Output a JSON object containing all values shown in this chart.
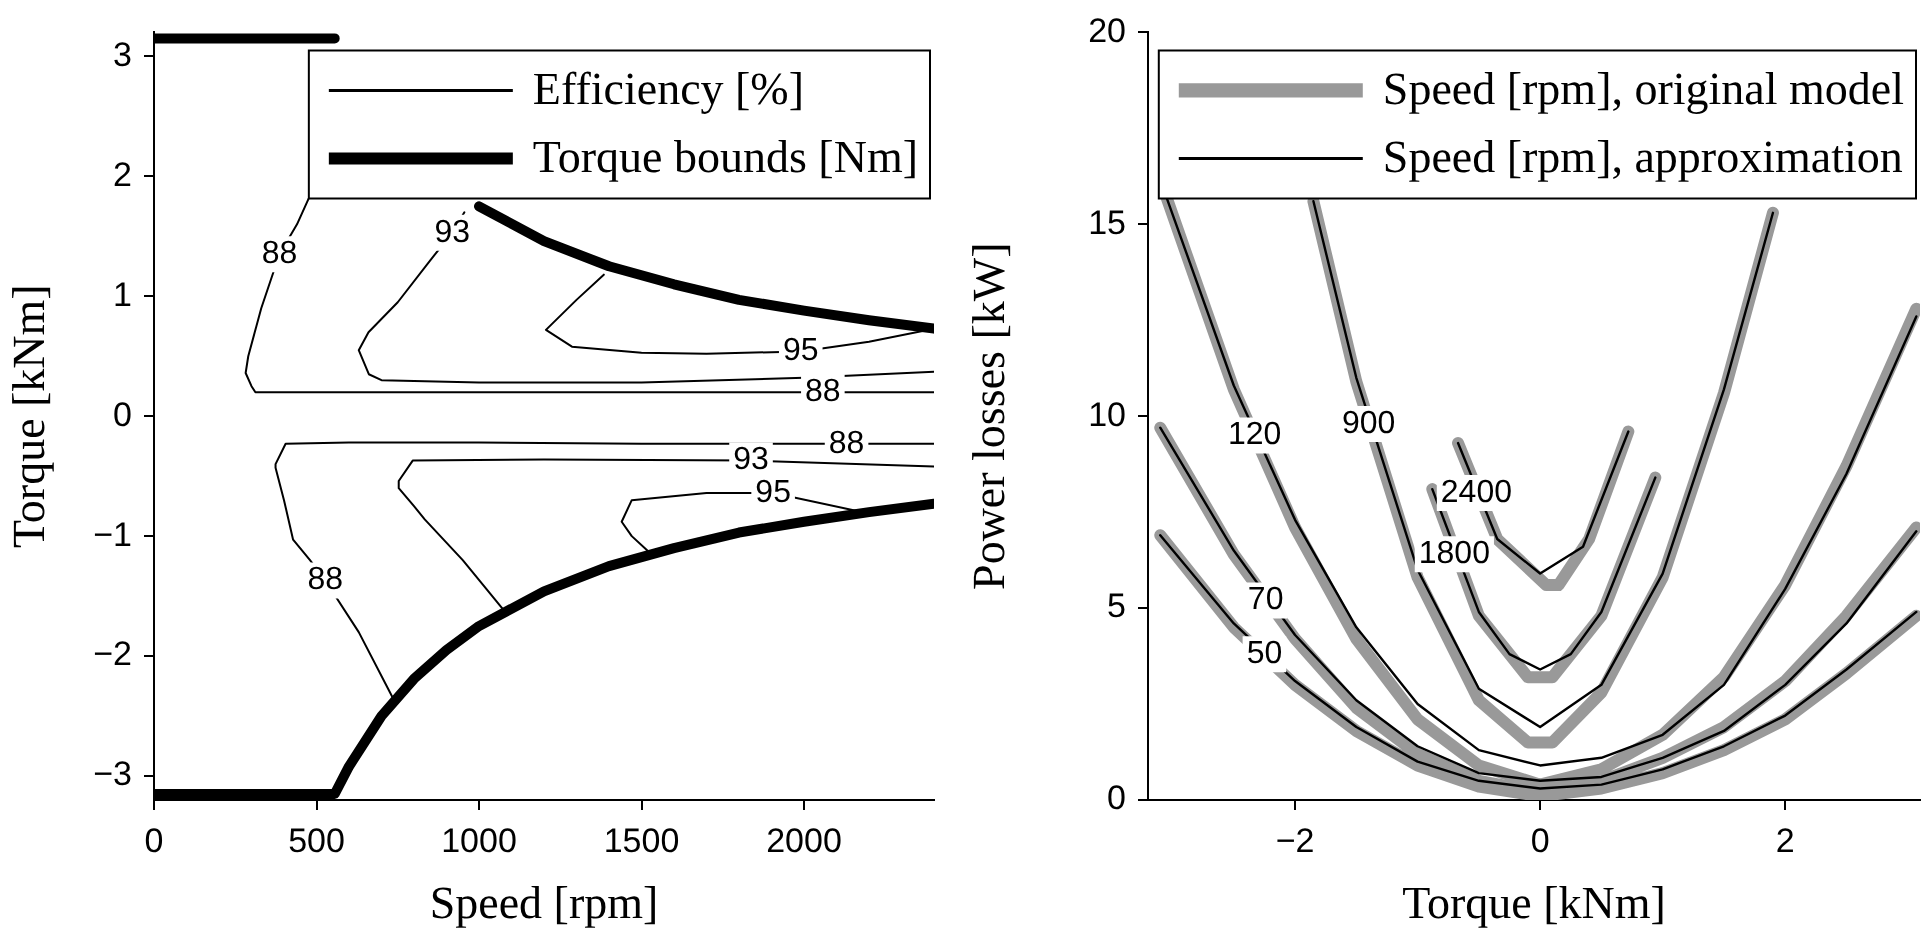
{
  "chart_data": [
    {
      "type": "line",
      "xlabel": "Speed [rpm]",
      "ylabel": "Torque [kNm]",
      "xlim": [
        0,
        2400
      ],
      "ylim": [
        -3.2,
        3.2
      ],
      "xticks": [
        0,
        500,
        1000,
        1500,
        2000
      ],
      "yticks": [
        {
          "value": -3,
          "label": "−3"
        },
        {
          "value": -2,
          "label": "−2"
        },
        {
          "value": -1,
          "label": "−1"
        },
        0,
        1,
        2,
        3
      ],
      "grid": false,
      "legend": "top right",
      "marker": "none",
      "line_style": "solid",
      "series": [
        {
          "name": "Efficiency [%]",
          "color": "#000000",
          "type": "line",
          "x": [
            490,
            440,
            386,
            330,
            290,
            282,
            300,
            312,
            600,
            1000,
            1500,
            2000,
            2400,
            null,
            955,
            918,
            850,
            750,
            660,
            630,
            661,
            700,
            1000,
            1500,
            2000,
            2400,
            null,
            1384,
            1300,
            1206,
            1286,
            1500,
            1700,
            1990,
            2200,
            2400,
            null,
            2400,
            2131,
            1500,
            1000,
            600,
            405,
            374,
            374,
            400,
            428,
            480,
            527,
            630,
            735,
            null,
            2400,
            1837,
            1200,
            796,
            753,
            753,
            800,
            833,
            950,
            1071,
            null,
            2180,
            1905,
            1700,
            1470,
            1439,
            1470,
            1518
          ],
          "values": [
            1.9,
            1.6,
            1.35,
            0.9,
            0.5,
            0.36,
            0.25,
            0.2,
            0.2,
            0.2,
            0.2,
            0.2,
            0.2,
            null,
            1.7,
            1.53,
            1.3,
            0.95,
            0.7,
            0.55,
            0.35,
            0.3,
            0.28,
            0.28,
            0.32,
            0.37,
            null,
            1.18,
            0.97,
            0.72,
            0.58,
            0.53,
            0.52,
            0.54,
            0.62,
            0.73,
            null,
            -0.23,
            -0.23,
            -0.23,
            -0.22,
            -0.22,
            -0.23,
            -0.4,
            -0.43,
            -0.7,
            -1.03,
            -1.2,
            -1.37,
            -1.8,
            -2.35,
            null,
            -0.42,
            -0.37,
            -0.36,
            -0.37,
            -0.54,
            -0.6,
            -0.75,
            -0.86,
            -1.2,
            -1.6,
            null,
            -0.8,
            -0.64,
            -0.64,
            -0.7,
            -0.88,
            -1.0,
            -1.12
          ]
        },
        {
          "name": "Torque bounds [Nm]",
          "color": "#000000",
          "type": "line",
          "x": [
            0,
            500,
            556,
            600,
            700,
            800,
            900,
            1000,
            1200,
            1400,
            1600,
            1800,
            2000,
            2200,
            2400,
            null,
            0,
            500,
            556,
            600,
            700,
            800,
            900,
            1000,
            1200,
            1400,
            1600,
            1800,
            2000,
            2200,
            2400
          ],
          "values": [
            3.15,
            3.15,
            3.15,
            null,
            null,
            null,
            null,
            1.75,
            1.46,
            1.25,
            1.1,
            0.97,
            0.88,
            0.8,
            0.73,
            null,
            -3.15,
            -3.15,
            -3.15,
            -2.92,
            -2.5,
            -2.19,
            -1.95,
            -1.75,
            -1.46,
            -1.25,
            -1.1,
            -0.97,
            -0.88,
            -0.8,
            -0.73
          ]
        }
      ],
      "annotations": [
        {
          "text": "88",
          "x": 386,
          "y": 1.35
        },
        {
          "text": "93",
          "x": 918,
          "y": 1.53
        },
        {
          "text": "95",
          "x": 1990,
          "y": 0.54
        },
        {
          "text": "88",
          "x": 2058,
          "y": 0.2
        },
        {
          "text": "88",
          "x": 2131,
          "y": -0.23
        },
        {
          "text": "93",
          "x": 1837,
          "y": -0.37
        },
        {
          "text": "95",
          "x": 1905,
          "y": -0.64
        },
        {
          "text": "88",
          "x": 527,
          "y": -1.37
        }
      ]
    },
    {
      "type": "line",
      "xlabel": "Torque [kNm]",
      "ylabel": "Power losses [kW]",
      "xlim": [
        -3.2,
        3.1
      ],
      "ylim": [
        0,
        20
      ],
      "xticks": [
        {
          "value": -2,
          "label": "−2"
        },
        0,
        2
      ],
      "yticks": [
        0,
        5,
        10,
        15,
        20
      ],
      "grid": false,
      "legend": "top right",
      "marker": "none",
      "line_style": "solid",
      "series": [
        {
          "name": "Speed [rpm], original model",
          "color": "#999999",
          "type": "line",
          "x": [
            -3.1,
            -2.5,
            -2,
            -1.5,
            -1,
            -0.5,
            0,
            0.5,
            1,
            1.5,
            2,
            2.5,
            3.07,
            null,
            -3.1,
            -2.5,
            -2,
            -1.5,
            -1,
            -0.5,
            0,
            0.5,
            1,
            1.5,
            2,
            2.5,
            3.07,
            null,
            -3.06,
            -2.5,
            -2,
            -1.5,
            -1,
            -0.5,
            0,
            0.5,
            1,
            1.5,
            2,
            2.5,
            3.07,
            null,
            -1.85,
            -1.5,
            -1,
            -0.5,
            -0.1,
            0.1,
            0.5,
            1,
            1.5,
            1.9,
            null,
            -0.88,
            -0.5,
            -0.1,
            0.1,
            0.5,
            0.94,
            null,
            -0.67,
            -0.35,
            0.05,
            0.15,
            0.4,
            0.72
          ],
          "values": [
            6.9,
            4.5,
            3.0,
            1.8,
            0.9,
            0.35,
            0.1,
            0.3,
            0.7,
            1.3,
            2.1,
            3.3,
            4.8,
            null,
            9.7,
            6.4,
            4.2,
            2.4,
            1.2,
            0.5,
            0.2,
            0.5,
            1.1,
            1.9,
            3.1,
            4.8,
            7.1,
            null,
            15.8,
            10.7,
            7.1,
            4.2,
            2.1,
            0.9,
            0.4,
            0.8,
            1.7,
            3.2,
            5.6,
            8.7,
            12.8,
            null,
            15.6,
            10.9,
            5.8,
            2.6,
            1.5,
            1.5,
            2.8,
            5.8,
            10.6,
            15.3,
            null,
            8.1,
            4.8,
            3.2,
            3.2,
            4.8,
            8.4,
            null,
            9.3,
            6.8,
            5.6,
            5.6,
            6.8,
            9.6
          ]
        },
        {
          "name": "Speed [rpm], approximation",
          "color": "#000000",
          "type": "line",
          "x": [
            -3.1,
            -2.5,
            -2,
            -1.5,
            -1,
            -0.5,
            0,
            0.5,
            1,
            1.5,
            2,
            2.5,
            3.07,
            null,
            -3.1,
            -2.5,
            -2,
            -1.5,
            -1,
            -0.5,
            0,
            0.5,
            1,
            1.5,
            2,
            2.5,
            3.07,
            null,
            -3.06,
            -2.5,
            -2,
            -1.5,
            -1,
            -0.5,
            0,
            0.5,
            1,
            1.5,
            2,
            2.5,
            3.07,
            null,
            -1.85,
            -1.5,
            -1,
            -0.5,
            0,
            0.5,
            1,
            1.5,
            1.9,
            null,
            -0.88,
            -0.5,
            -0.25,
            0,
            0.25,
            0.5,
            0.94,
            null,
            -0.67,
            -0.35,
            0,
            0.35,
            0.72
          ],
          "values": [
            6.9,
            4.6,
            3.1,
            1.9,
            1.0,
            0.5,
            0.3,
            0.4,
            0.8,
            1.4,
            2.2,
            3.4,
            4.9,
            null,
            9.7,
            6.5,
            4.3,
            2.6,
            1.4,
            0.7,
            0.5,
            0.6,
            1.1,
            1.8,
            3.0,
            4.6,
            7.0,
            null,
            15.8,
            10.8,
            7.3,
            4.5,
            2.5,
            1.3,
            0.9,
            1.1,
            1.7,
            3.0,
            5.5,
            8.5,
            12.6,
            null,
            15.6,
            11.0,
            6.0,
            2.9,
            1.9,
            3.0,
            5.9,
            10.7,
            15.3,
            null,
            8.1,
            4.9,
            3.8,
            3.4,
            3.8,
            4.9,
            8.4,
            null,
            9.3,
            6.8,
            5.9,
            6.6,
            9.6
          ]
        }
      ],
      "annotations": [
        {
          "text": "120",
          "x": -2.33,
          "y": 9.5
        },
        {
          "text": "900",
          "x": -1.4,
          "y": 9.8
        },
        {
          "text": "2400",
          "x": -0.52,
          "y": 8.0
        },
        {
          "text": "1800",
          "x": -0.7,
          "y": 6.4
        },
        {
          "text": "70",
          "x": -2.24,
          "y": 5.2
        },
        {
          "text": "50",
          "x": -2.25,
          "y": 3.8
        }
      ]
    }
  ]
}
